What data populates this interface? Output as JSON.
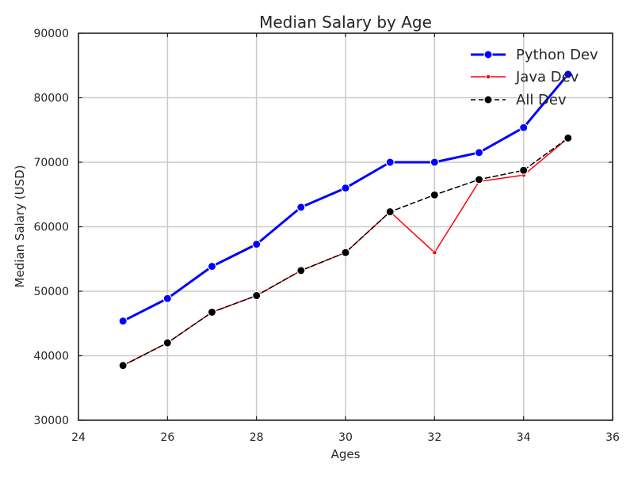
{
  "chart_data": {
    "type": "line",
    "title": "Median Salary by Age",
    "xlabel": "Ages",
    "ylabel": "Median Salary (USD)",
    "xlim": [
      24,
      36
    ],
    "ylim": [
      30000,
      90000
    ],
    "xticks": [
      24,
      26,
      28,
      30,
      32,
      34,
      36
    ],
    "yticks": [
      30000,
      40000,
      50000,
      60000,
      70000,
      80000,
      90000
    ],
    "grid": true,
    "legend_position": "top-right",
    "x": [
      25,
      26,
      27,
      28,
      29,
      30,
      31,
      32,
      33,
      34,
      35
    ],
    "series": [
      {
        "name": "Python Dev",
        "values": [
          45372,
          48876,
          53850,
          57287,
          63016,
          65998,
          70003,
          70000,
          71496,
          75370,
          83640
        ],
        "color": "#0000ff",
        "line_style": "solid",
        "marker": "circle"
      },
      {
        "name": "Java Dev",
        "values": [
          38496,
          42000,
          46752,
          49320,
          53200,
          56000,
          62316,
          56000,
          67000,
          68000,
          73752
        ],
        "color": "#ff0000",
        "line_style": "solid",
        "marker": "small-circle"
      },
      {
        "name": "All Dev",
        "values": [
          38496,
          42000,
          46752,
          49320,
          53200,
          56000,
          62316,
          64928,
          67317,
          68748,
          73752
        ],
        "color": "#000000",
        "line_style": "dashed",
        "marker": "circle"
      }
    ]
  }
}
